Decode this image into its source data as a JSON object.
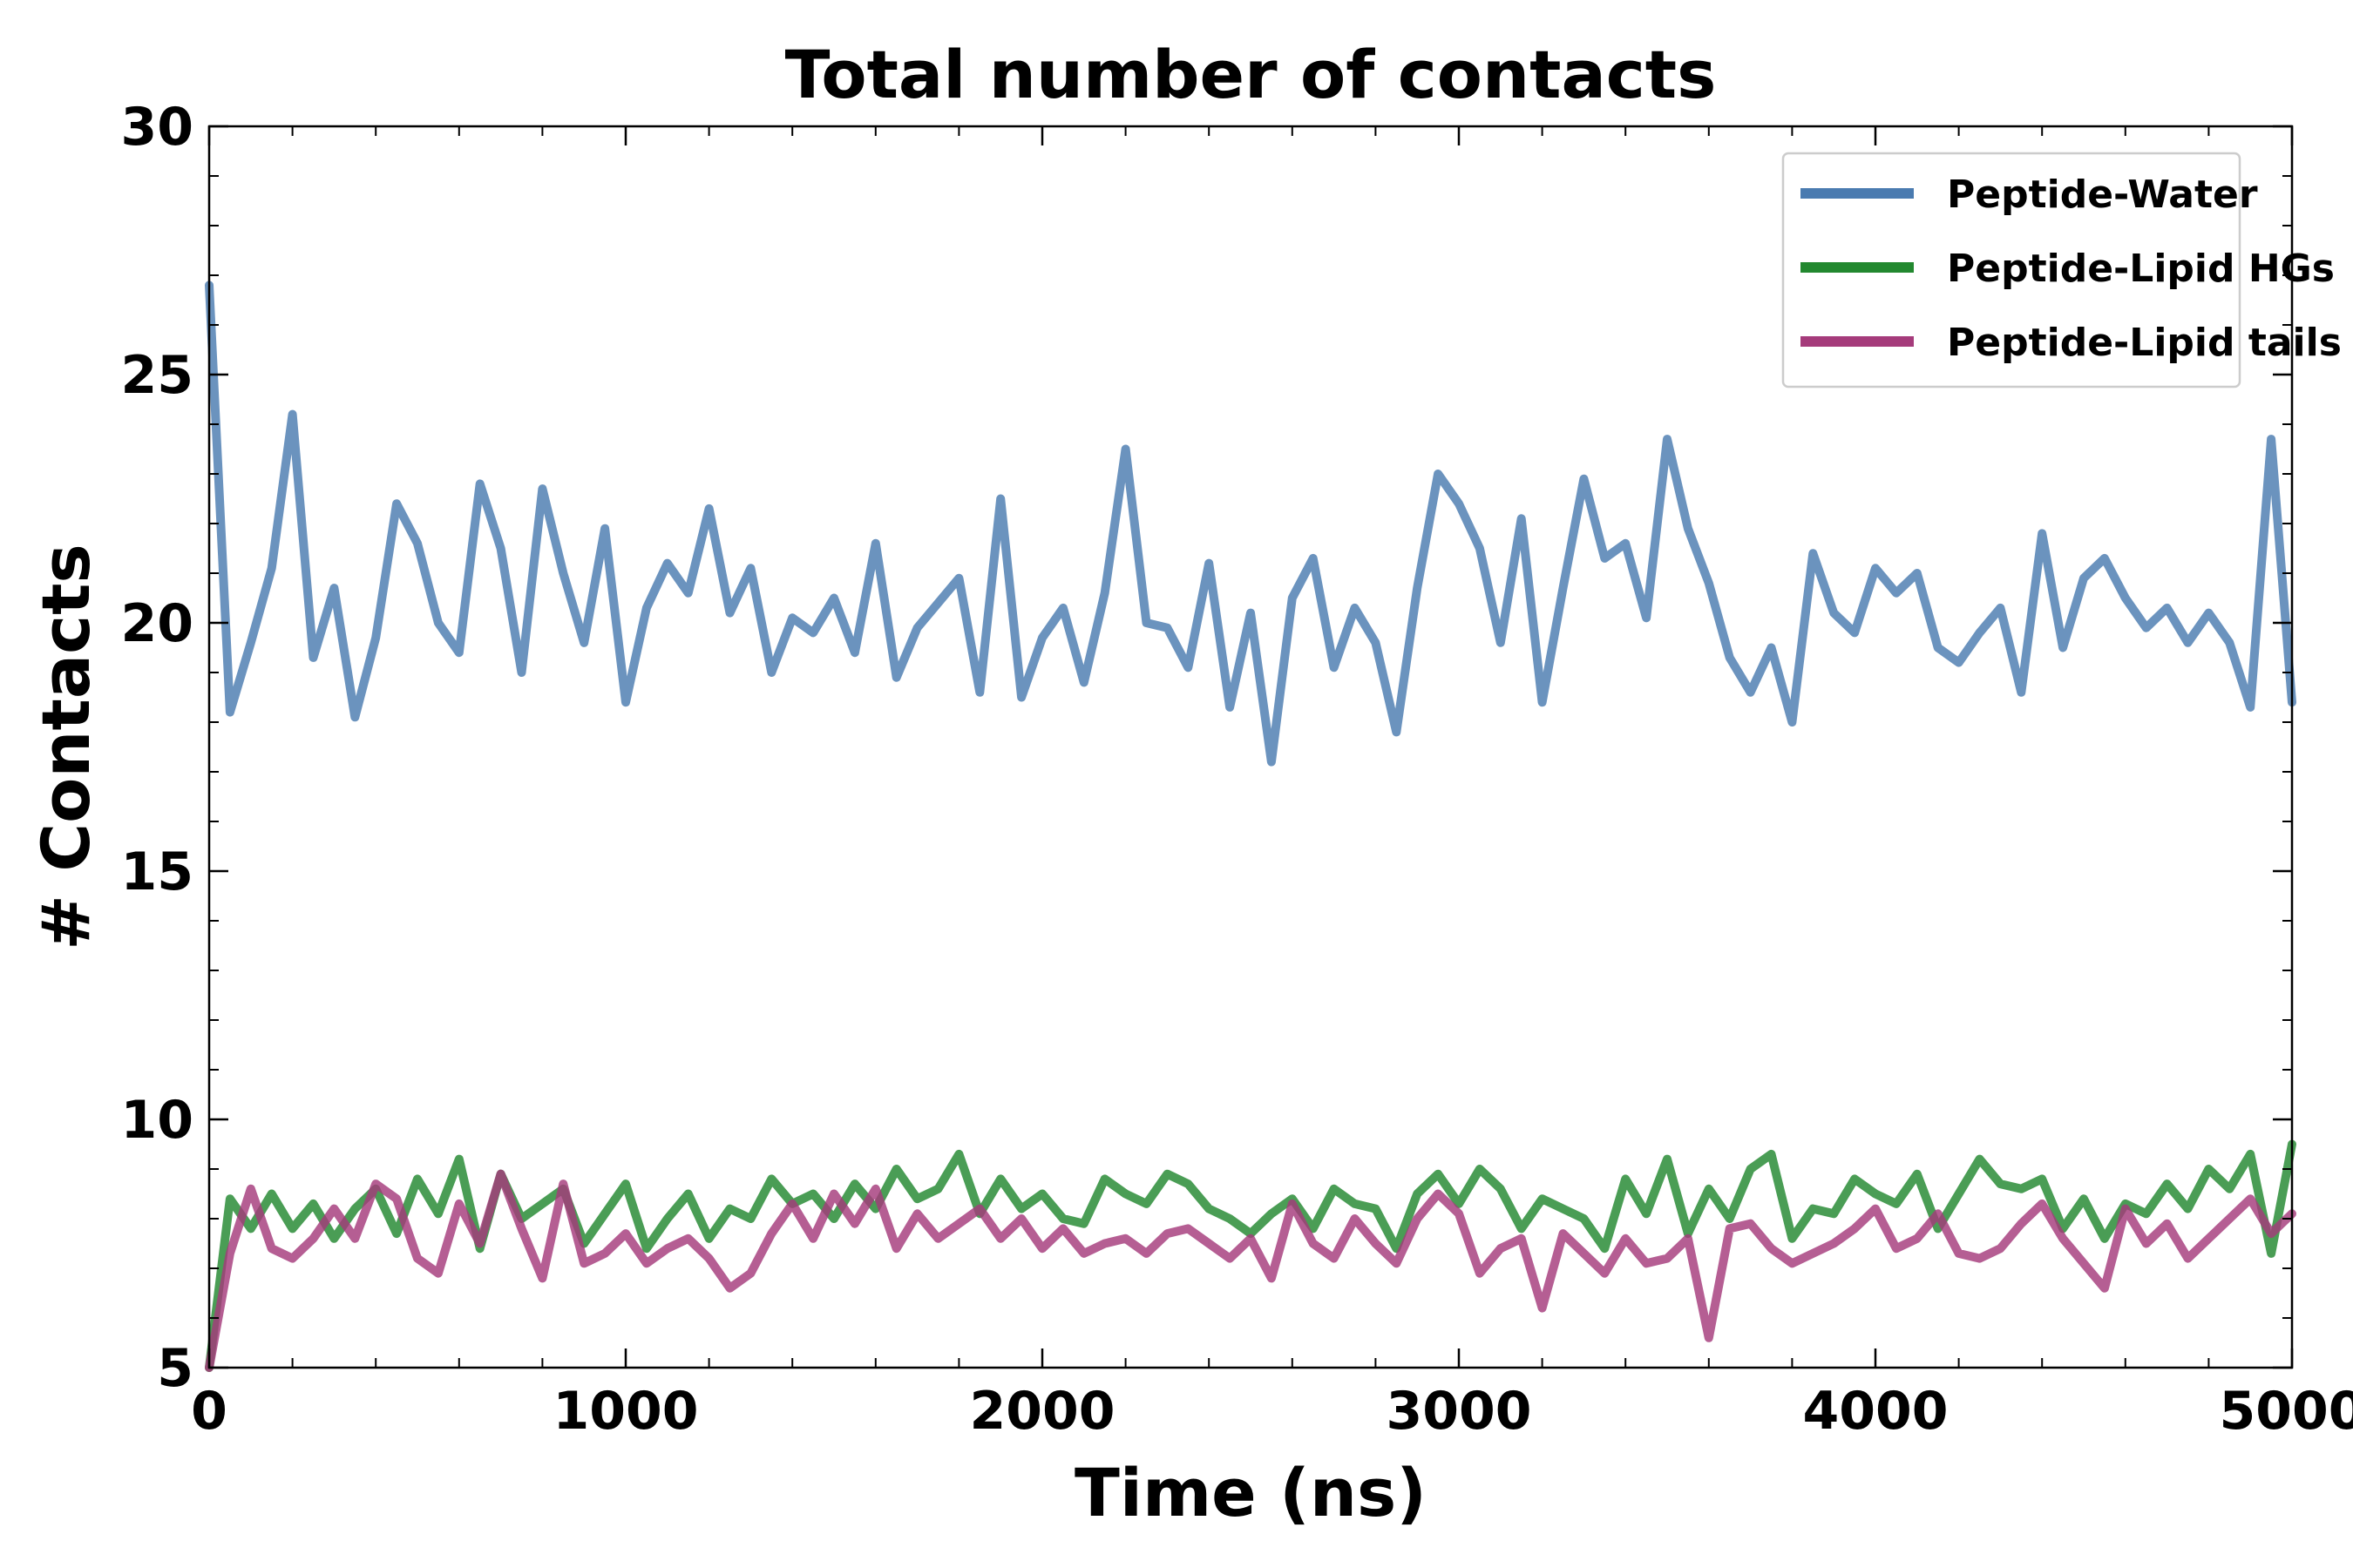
{
  "chart_data": {
    "type": "line",
    "title": "Total number of contacts",
    "xlabel": "Time (ns)",
    "ylabel": "# Contacts",
    "xlim": [
      0,
      5000
    ],
    "ylim": [
      5,
      30
    ],
    "xticks": [
      0,
      1000,
      2000,
      3000,
      4000,
      5000
    ],
    "yticks": [
      5,
      10,
      15,
      20,
      25,
      30
    ],
    "grid": false,
    "legend_position": "top-right",
    "x": [
      0,
      50,
      100,
      150,
      200,
      250,
      300,
      350,
      400,
      450,
      500,
      550,
      600,
      650,
      700,
      750,
      800,
      850,
      900,
      950,
      1000,
      1050,
      1100,
      1150,
      1200,
      1250,
      1300,
      1350,
      1400,
      1450,
      1500,
      1550,
      1600,
      1650,
      1700,
      1750,
      1800,
      1850,
      1900,
      1950,
      2000,
      2050,
      2100,
      2150,
      2200,
      2250,
      2300,
      2350,
      2400,
      2450,
      2500,
      2550,
      2600,
      2650,
      2700,
      2750,
      2800,
      2850,
      2900,
      2950,
      3000,
      3050,
      3100,
      3150,
      3200,
      3250,
      3300,
      3350,
      3400,
      3450,
      3500,
      3550,
      3600,
      3650,
      3700,
      3750,
      3800,
      3850,
      3900,
      3950,
      4000,
      4050,
      4100,
      4150,
      4200,
      4250,
      4300,
      4350,
      4400,
      4450,
      4500,
      4550,
      4600,
      4650,
      4700,
      4750,
      4800,
      4850,
      4900,
      4950,
      5000
    ],
    "series": [
      {
        "name": "Peptide-Water",
        "color": "#4a7bb0",
        "values": [
          26.8,
          18.2,
          19.6,
          21.1,
          24.2,
          19.3,
          20.7,
          18.1,
          19.7,
          22.4,
          21.6,
          20.0,
          19.4,
          22.8,
          21.5,
          19.0,
          22.7,
          21.0,
          19.6,
          21.9,
          18.4,
          20.3,
          21.2,
          20.6,
          22.3,
          20.2,
          21.1,
          19.0,
          20.1,
          19.8,
          20.5,
          19.4,
          21.6,
          18.9,
          19.9,
          20.4,
          20.9,
          18.6,
          22.5,
          18.5,
          19.7,
          20.3,
          18.8,
          20.6,
          23.5,
          20.0,
          19.9,
          19.1,
          21.2,
          18.3,
          20.2,
          17.2,
          20.5,
          21.3,
          19.1,
          20.3,
          19.6,
          17.8,
          20.7,
          23.0,
          22.4,
          21.5,
          19.6,
          22.1,
          18.4,
          20.7,
          22.9,
          21.3,
          21.6,
          20.1,
          23.7,
          21.9,
          20.8,
          19.3,
          18.6,
          19.5,
          18.0,
          21.4,
          20.2,
          19.8,
          21.1,
          20.6,
          21.0,
          19.5,
          19.2,
          19.8,
          20.3,
          18.6,
          21.8,
          19.5,
          20.9,
          21.3,
          20.5,
          19.9,
          20.3,
          19.6,
          20.2,
          19.6,
          18.3,
          23.7,
          18.4
        ]
      },
      {
        "name": "Peptide-Lipid HGs",
        "color": "#22882f",
        "values": [
          5.0,
          8.4,
          7.8,
          8.5,
          7.8,
          8.3,
          7.6,
          8.2,
          8.6,
          7.7,
          8.8,
          8.1,
          9.2,
          7.4,
          8.9,
          8.0,
          8.3,
          8.6,
          7.5,
          8.1,
          8.7,
          7.4,
          8.0,
          8.5,
          7.6,
          8.2,
          8.0,
          8.8,
          8.3,
          8.5,
          8.0,
          8.7,
          8.2,
          9.0,
          8.4,
          8.6,
          9.3,
          8.1,
          8.8,
          8.2,
          8.5,
          8.0,
          7.9,
          8.8,
          8.5,
          8.3,
          8.9,
          8.7,
          8.2,
          8.0,
          7.7,
          8.1,
          8.4,
          7.8,
          8.6,
          8.3,
          8.2,
          7.4,
          8.5,
          8.9,
          8.3,
          9.0,
          8.6,
          7.8,
          8.4,
          8.2,
          8.0,
          7.4,
          8.8,
          8.1,
          9.2,
          7.7,
          8.6,
          8.0,
          9.0,
          9.3,
          7.6,
          8.2,
          8.1,
          8.8,
          8.5,
          8.3,
          8.9,
          7.8,
          8.5,
          9.2,
          8.7,
          8.6,
          8.8,
          7.8,
          8.4,
          7.6,
          8.3,
          8.1,
          8.7,
          8.2,
          9.0,
          8.6,
          9.3,
          7.3,
          9.5
        ]
      },
      {
        "name": "Peptide-Lipid tails",
        "color": "#a53b7b",
        "values": [
          5.0,
          7.3,
          8.6,
          7.4,
          7.2,
          7.6,
          8.2,
          7.6,
          8.7,
          8.4,
          7.2,
          6.9,
          8.3,
          7.5,
          8.9,
          7.8,
          6.8,
          8.7,
          7.1,
          7.3,
          7.7,
          7.1,
          7.4,
          7.6,
          7.2,
          6.6,
          6.9,
          7.7,
          8.3,
          7.6,
          8.5,
          7.9,
          8.6,
          7.4,
          8.1,
          7.6,
          7.9,
          8.2,
          7.6,
          8.0,
          7.4,
          7.8,
          7.3,
          7.5,
          7.6,
          7.3,
          7.7,
          7.8,
          7.5,
          7.2,
          7.6,
          6.8,
          8.3,
          7.5,
          7.2,
          8.0,
          7.5,
          7.1,
          8.0,
          8.5,
          8.1,
          6.9,
          7.4,
          7.6,
          6.2,
          7.7,
          7.3,
          6.9,
          7.6,
          7.1,
          7.2,
          7.6,
          5.6,
          7.8,
          7.9,
          7.4,
          7.1,
          7.3,
          7.5,
          7.8,
          8.2,
          7.4,
          7.6,
          8.1,
          7.3,
          7.2,
          7.4,
          7.9,
          8.3,
          7.6,
          7.1,
          6.6,
          8.2,
          7.5,
          7.9,
          7.2,
          7.6,
          8.0,
          8.4,
          7.7,
          8.1
        ]
      }
    ]
  }
}
